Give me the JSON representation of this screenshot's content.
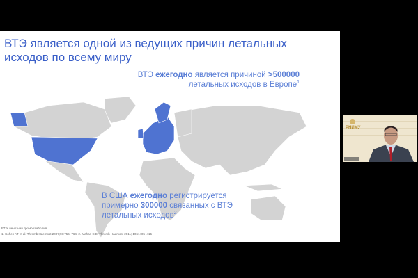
{
  "slide": {
    "title": "ВТЭ является одной из ведущих причин летальных исходов по всему миру",
    "europe_callout": {
      "pre": "ВТЭ ",
      "bold1": "ежегодно",
      "mid": " является причиной ",
      "bold2": ">500000",
      "line2": "летальных исходов в Европе",
      "sup": "1"
    },
    "usa_callout": {
      "pre": "В США ",
      "bold1": "ежегодно",
      "mid": " регистрируется",
      "line2pre": "примерно ",
      "bold2": "300000",
      "line2post": " связанных с ВТЭ",
      "line3": "летальных исходов",
      "sup": "2"
    },
    "footnote_abbrev": "ВТЭ- венозная тромбоэмболия",
    "footnote_refs": "1. Cohen AT et al. Thromb Haemost 2007;98:756–764; 2. Mahan C.E. Thromb Haemost 2011; 106: 405–415",
    "colors": {
      "highlight": "#4f73d1",
      "land": "#d3d3d3",
      "accent": "#3a5fc8"
    }
  },
  "webcam": {
    "logo": "РНИМУ"
  }
}
